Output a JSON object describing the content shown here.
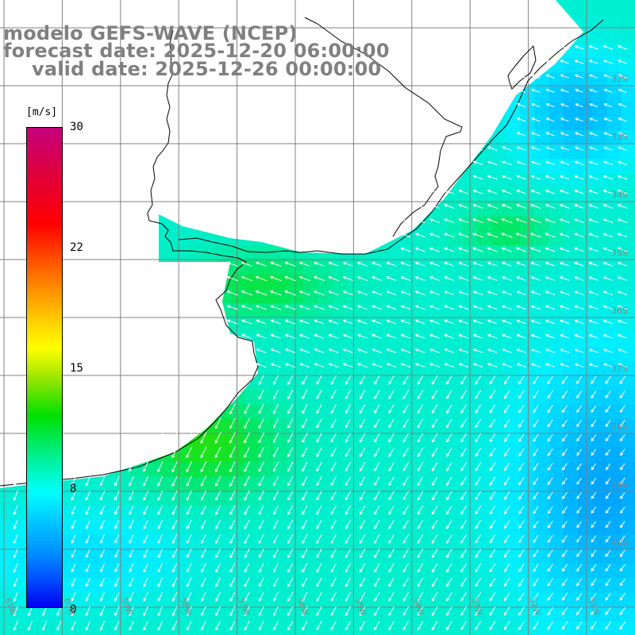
{
  "titles": {
    "line1": "modelo GEFS-WAVE (NCEP)",
    "line2": "forecast date: 2025-12-20 06:00:00",
    "line3": "valid date: 2025-12-26 00:00:00"
  },
  "colorbar": {
    "unit": "[m/s]",
    "ticks": [
      "30",
      "22",
      "15",
      "8",
      "0"
    ],
    "colors": [
      "#c4007a",
      "#ff0000",
      "#ff6a00",
      "#ffff00",
      "#00e000",
      "#00ffff",
      "#0096ff",
      "#0000f0"
    ]
  },
  "lat_labels": [
    "32S",
    "33S",
    "34S",
    "35S",
    "36S",
    "37S",
    "38S",
    "39S",
    "40S"
  ],
  "lon_labels": [
    "61W",
    "60W",
    "59W",
    "58W",
    "57W",
    "56W",
    "55W",
    "54W",
    "53W",
    "52W",
    "51W"
  ],
  "colors": {
    "land": "#ffffff",
    "coastline": "#000000",
    "gridline": "#808080",
    "arrow": "#ffffff"
  }
}
